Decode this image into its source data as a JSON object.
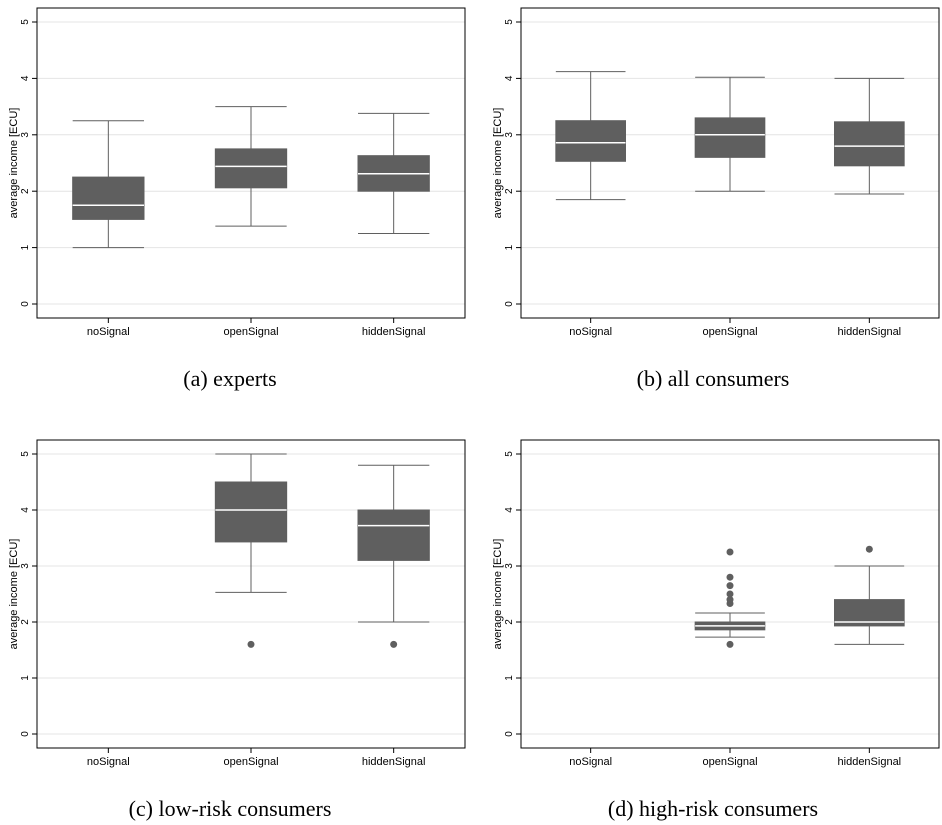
{
  "chart_data": [
    {
      "type": "box",
      "caption": "(a) experts",
      "ylabel": "average income [ECU]",
      "ylim": [
        0,
        5
      ],
      "yticks": [
        "0",
        "1",
        "2",
        "3",
        "4",
        "5"
      ],
      "categories": [
        "noSignal",
        "openSignal",
        "hiddenSignal"
      ],
      "grid": true,
      "boxes": [
        {
          "category": "noSignal",
          "min": 1.0,
          "q1": 1.5,
          "median": 1.75,
          "q3": 2.25,
          "max": 3.25,
          "outliers": []
        },
        {
          "category": "openSignal",
          "min": 1.38,
          "q1": 2.06,
          "median": 2.44,
          "q3": 2.75,
          "max": 3.5,
          "outliers": []
        },
        {
          "category": "hiddenSignal",
          "min": 1.25,
          "q1": 2.0,
          "median": 2.31,
          "q3": 2.63,
          "max": 3.38,
          "outliers": []
        }
      ]
    },
    {
      "type": "box",
      "caption": "(b) all consumers",
      "ylabel": "average income [ECU]",
      "ylim": [
        0,
        5
      ],
      "yticks": [
        "0",
        "1",
        "2",
        "3",
        "4",
        "5"
      ],
      "categories": [
        "noSignal",
        "openSignal",
        "hiddenSignal"
      ],
      "grid": true,
      "boxes": [
        {
          "category": "noSignal",
          "min": 1.85,
          "q1": 2.53,
          "median": 2.86,
          "q3": 3.25,
          "max": 4.12,
          "outliers": []
        },
        {
          "category": "openSignal",
          "min": 2.0,
          "q1": 2.6,
          "median": 3.0,
          "q3": 3.3,
          "max": 4.02,
          "outliers": []
        },
        {
          "category": "hiddenSignal",
          "min": 1.95,
          "q1": 2.45,
          "median": 2.8,
          "q3": 3.23,
          "max": 4.0,
          "outliers": []
        }
      ]
    },
    {
      "type": "box",
      "caption": "(c) low-risk consumers",
      "ylabel": "average income [ECU]",
      "ylim": [
        0,
        5
      ],
      "yticks": [
        "0",
        "1",
        "2",
        "3",
        "4",
        "5"
      ],
      "categories": [
        "noSignal",
        "openSignal",
        "hiddenSignal"
      ],
      "grid": true,
      "boxes": [
        {
          "category": "openSignal",
          "min": 2.53,
          "q1": 3.43,
          "median": 4.0,
          "q3": 4.5,
          "max": 5.0,
          "outliers": [
            1.6
          ]
        },
        {
          "category": "hiddenSignal",
          "min": 2.0,
          "q1": 3.1,
          "median": 3.72,
          "q3": 4.0,
          "max": 4.8,
          "outliers": [
            1.6
          ]
        }
      ]
    },
    {
      "type": "box",
      "caption": "(d) high-risk consumers",
      "ylabel": "average income [ECU]",
      "ylim": [
        0,
        5
      ],
      "yticks": [
        "0",
        "1",
        "2",
        "3",
        "4",
        "5"
      ],
      "categories": [
        "noSignal",
        "openSignal",
        "hiddenSignal"
      ],
      "grid": true,
      "boxes": [
        {
          "category": "openSignal",
          "min": 1.73,
          "q1": 1.86,
          "median": 1.93,
          "q3": 2.0,
          "max": 2.16,
          "outliers": [
            1.6,
            2.33,
            2.4,
            2.5,
            2.65,
            2.8,
            3.25
          ]
        },
        {
          "category": "hiddenSignal",
          "min": 1.6,
          "q1": 1.93,
          "median": 2.0,
          "q3": 2.4,
          "max": 3.0,
          "outliers": [
            3.3
          ]
        }
      ]
    }
  ],
  "colors": {
    "box_fill": "#5f5f5f",
    "median_line": "#ffffff",
    "whisker": "#5f5f5f",
    "gridline": "#e4e4e4",
    "axis": "#000000"
  }
}
